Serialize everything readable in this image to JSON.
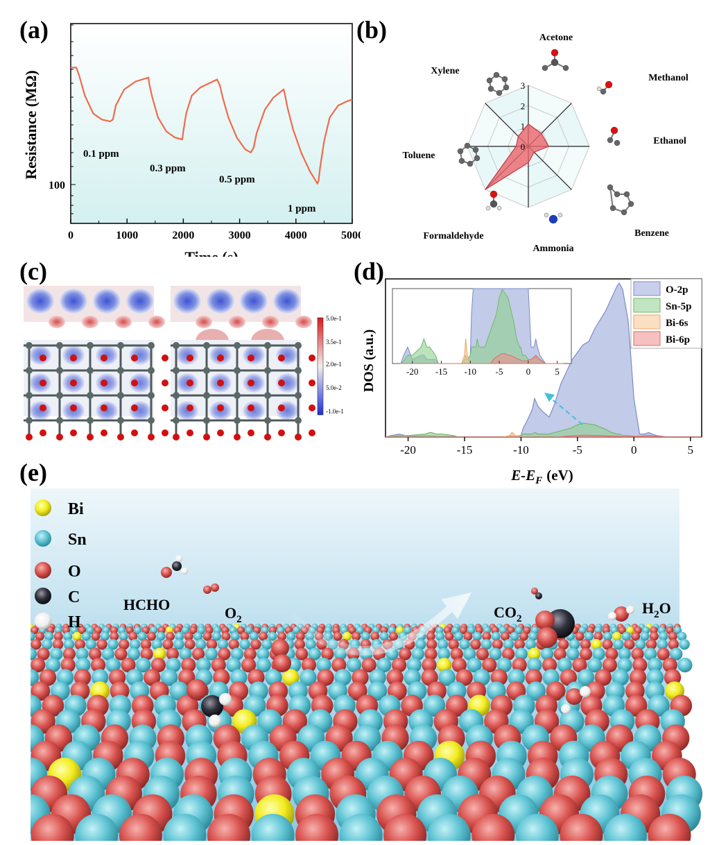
{
  "panels": {
    "a": "(a)",
    "b": "(b)",
    "c": "(c)",
    "d": "(d)",
    "e": "(e)"
  },
  "colors": {
    "curve": "#f06a4a",
    "radar_fill": "#e8656b",
    "radar_bg": "#d5f1f1",
    "o2p": "#9aa8d8",
    "sn5p": "#8fd08e",
    "bi6s": "#f7c48f",
    "bi6p": "#ef8d8d",
    "bi_atom": "#f2ec1f",
    "sn_atom": "#5ec3d3",
    "o_atom": "#d9534f",
    "c_atom": "#2f2f3a",
    "h_atom": "#f4f4f4"
  },
  "chart_data": [
    {
      "type": "line",
      "panel": "a",
      "xlabel": "Time (s)",
      "ylabel": "Resistance (MΩ)",
      "xticks": [
        "0",
        "1000",
        "2000",
        "3000",
        "4000",
        "5000"
      ],
      "xlim": [
        0,
        5000
      ],
      "yticks": [
        "100"
      ],
      "ylog": true,
      "series": [
        {
          "x": [
            0,
            100,
            150,
            250,
            400,
            550,
            700,
            750,
            800,
            950,
            1150,
            1380,
            1400,
            1450,
            1550,
            1700,
            1850,
            1980,
            2000,
            2050,
            2150,
            2300,
            2450,
            2600,
            2650,
            2700,
            2800,
            2950,
            3100,
            3200,
            3250,
            3300,
            3450,
            3600,
            3780,
            3800,
            3850,
            3950,
            4100,
            4250,
            4380,
            4400,
            4430,
            4500,
            4600,
            4750,
            4900,
            5000
          ],
          "y": [
            0.78,
            0.78,
            0.74,
            0.64,
            0.55,
            0.52,
            0.51,
            0.52,
            0.59,
            0.67,
            0.71,
            0.73,
            0.69,
            0.63,
            0.53,
            0.46,
            0.43,
            0.42,
            0.46,
            0.55,
            0.64,
            0.68,
            0.7,
            0.72,
            0.69,
            0.63,
            0.53,
            0.43,
            0.37,
            0.355,
            0.38,
            0.45,
            0.57,
            0.63,
            0.67,
            0.65,
            0.58,
            0.47,
            0.35,
            0.26,
            0.2,
            0.21,
            0.28,
            0.41,
            0.53,
            0.59,
            0.61,
            0.62
          ]
        }
      ],
      "annotations": [
        "0.1 ppm",
        "0.3 ppm",
        "0.5 ppm",
        "1 ppm"
      ]
    },
    {
      "type": "radar",
      "panel": "b",
      "categories": [
        "Acetone",
        "Methanol",
        "Ethanol",
        "Benzene",
        "Ammonia",
        "Formaldehyde",
        "Toluene",
        "Xylene"
      ],
      "values": [
        1.1,
        0.9,
        1.0,
        0.4,
        0.8,
        3.0,
        0.6,
        0.7
      ],
      "rticks": [
        "0",
        "1",
        "2",
        "3"
      ],
      "rmax": 3
    },
    {
      "type": "area",
      "panel": "d",
      "xlabel": "E-E",
      "xlabel_sub": "F",
      "xlabel_unit": "(eV)",
      "ylabel": "DOS (a.u.)",
      "xticks": [
        "-20",
        "-15",
        "-10",
        "-5",
        "0",
        "5"
      ],
      "xlim": [
        -22,
        6
      ],
      "inset_xticks": [
        "-20",
        "-15",
        "-10",
        "-5",
        "0",
        "5"
      ],
      "x": [
        -22,
        -21.5,
        -20.8,
        -20,
        -18.5,
        -18,
        -17.5,
        -17,
        -16,
        -15.5,
        -11.5,
        -11,
        -10.8,
        -10.5,
        -10,
        -9.8,
        -9.5,
        -9,
        -8.8,
        -8.5,
        -8,
        -7.5,
        -7,
        -6.5,
        -6,
        -5.5,
        -5,
        -4.5,
        -4,
        -3.5,
        -3,
        -2.5,
        -2,
        -1.5,
        -1.3,
        -1,
        -0.5,
        0,
        0.5,
        1,
        1.3,
        1.6,
        2,
        3,
        6
      ],
      "series": [
        {
          "name": "O-2p",
          "values": [
            0,
            0.01,
            0.02,
            0.005,
            0.01,
            0.01,
            0.005,
            0.005,
            0.005,
            0,
            0,
            0.005,
            0.01,
            0.005,
            0.01,
            0.06,
            0.1,
            0.18,
            0.25,
            0.2,
            0.16,
            0.13,
            0.22,
            0.34,
            0.42,
            0.5,
            0.55,
            0.6,
            0.62,
            0.7,
            0.76,
            0.82,
            0.9,
            0.98,
            1.0,
            0.96,
            0.75,
            0.25,
            0.02,
            0.02,
            0.03,
            0.02,
            0.01,
            0,
            0
          ]
        },
        {
          "name": "Sn-5p",
          "values": [
            0,
            0.003,
            0.01,
            0.01,
            0.02,
            0.03,
            0.02,
            0.02,
            0.01,
            0,
            0,
            0.005,
            0.01,
            0.005,
            0.01,
            0.02,
            0.02,
            0.02,
            0.03,
            0.02,
            0.02,
            0.02,
            0.03,
            0.04,
            0.05,
            0.06,
            0.08,
            0.09,
            0.085,
            0.08,
            0.065,
            0.05,
            0.03,
            0.02,
            0.02,
            0.01,
            0.01,
            0.005,
            0.005,
            0.006,
            0.008,
            0.006,
            0.004,
            0,
            0
          ]
        },
        {
          "name": "Bi-6s",
          "values": [
            0,
            0,
            0,
            0,
            0,
            0,
            0,
            0,
            0,
            0,
            0,
            0.01,
            0.03,
            0.01,
            0,
            0,
            0,
            0,
            0,
            0,
            0,
            0,
            0,
            0,
            0,
            0,
            0,
            0,
            0,
            0,
            0,
            0,
            0,
            0,
            0,
            0,
            0,
            0,
            0,
            0,
            0,
            0,
            0,
            0,
            0
          ]
        },
        {
          "name": "Bi-6p",
          "values": [
            0,
            0,
            0,
            0,
            0,
            0,
            0,
            0,
            0,
            0,
            0,
            0,
            0,
            0,
            0,
            0,
            0,
            0,
            0,
            0,
            0,
            0,
            0,
            0,
            0.005,
            0.008,
            0.01,
            0.012,
            0.012,
            0.01,
            0.01,
            0.008,
            0.006,
            0.005,
            0.004,
            0.003,
            0.003,
            0.004,
            0.005,
            0.008,
            0.01,
            0.008,
            0.005,
            0,
            0
          ]
        }
      ]
    }
  ],
  "panel_c": {
    "colorbar_labels": [
      "5.0e-1",
      "3.5e-1",
      "2.0e-1",
      "5.0e-2",
      "-1.0e-1"
    ]
  },
  "panel_e": {
    "legend": [
      {
        "label": "Bi"
      },
      {
        "label": "Sn"
      },
      {
        "label": "O"
      },
      {
        "label": "C"
      },
      {
        "label": "H"
      }
    ],
    "hcho": "HCHO",
    "o2": "O",
    "o2_sub": "2",
    "co2": "CO",
    "co2_sub": "2",
    "h2o": "H",
    "h2o_sub": "2",
    "h2o_tail": "O"
  }
}
